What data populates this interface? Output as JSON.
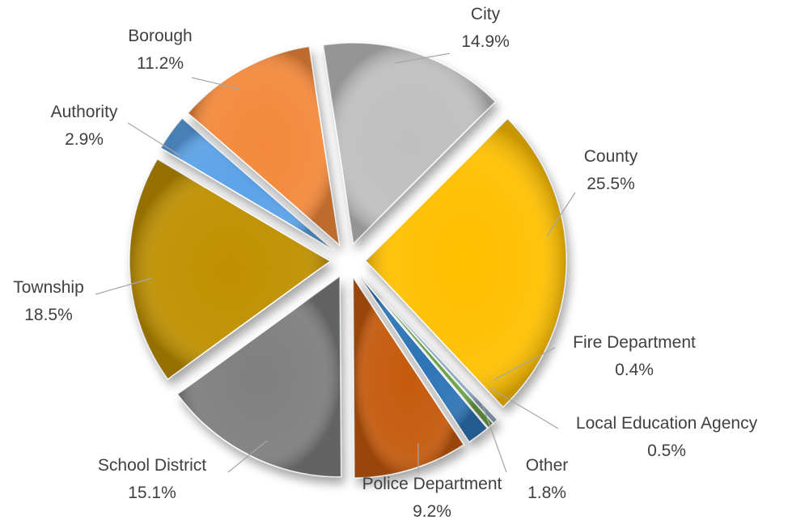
{
  "chart_data": {
    "type": "pie",
    "style": "3d-exploded",
    "legend": "none",
    "title": "",
    "slices": [
      {
        "label": "County",
        "value": 25.5,
        "value_label": "25.5%",
        "color": "#FFC000"
      },
      {
        "label": "Fire Department",
        "value": 0.4,
        "value_label": "0.4%",
        "color": "#9BB7D4"
      },
      {
        "label": "Local Education Agency",
        "value": 0.5,
        "value_label": "0.5%",
        "color": "#70AD47"
      },
      {
        "label": "Other",
        "value": 1.8,
        "value_label": "1.8%",
        "color": "#2E75B6"
      },
      {
        "label": "Police Department",
        "value": 9.2,
        "value_label": "9.2%",
        "color": "#C55A11"
      },
      {
        "label": "School District",
        "value": 15.1,
        "value_label": "15.1%",
        "color": "#7F7F7F"
      },
      {
        "label": "Township",
        "value": 18.5,
        "value_label": "18.5%",
        "color": "#BF9000"
      },
      {
        "label": "Authority",
        "value": 2.9,
        "value_label": "2.9%",
        "color": "#5BA3E8"
      },
      {
        "label": "Borough",
        "value": 11.2,
        "value_label": "11.2%",
        "color": "#F4893A"
      },
      {
        "label": "City",
        "value": 14.9,
        "value_label": "14.9%",
        "color": "#BFBFBF"
      }
    ]
  }
}
